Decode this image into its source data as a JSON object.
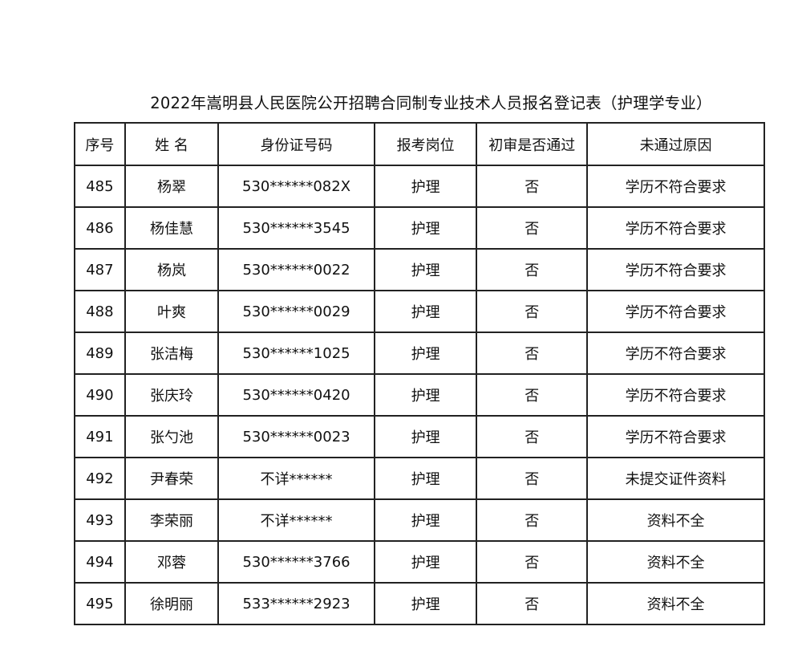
{
  "title": "2022年嵩明县人民医院公开招聘合同制专业技术人员报名登记表（护理学专业）",
  "headers": [
    "序号",
    "姓 名",
    "身份证号码",
    "报考岗位",
    "初审是否通过",
    "未通过原因"
  ],
  "rows": [
    [
      "485",
      "杨翠",
      "530******082X",
      "护理",
      "否",
      "学历不符合要求"
    ],
    [
      "486",
      "杨佳慧",
      "530******3545",
      "护理",
      "否",
      "学历不符合要求"
    ],
    [
      "487",
      "杨岚",
      "530******0022",
      "护理",
      "否",
      "学历不符合要求"
    ],
    [
      "488",
      "叶爽",
      "530******0029",
      "护理",
      "否",
      "学历不符合要求"
    ],
    [
      "489",
      "张洁梅",
      "530******1025",
      "护理",
      "否",
      "学历不符合要求"
    ],
    [
      "490",
      "张庆玲",
      "530******0420",
      "护理",
      "否",
      "学历不符合要求"
    ],
    [
      "491",
      "张勺池",
      "530******0023",
      "护理",
      "否",
      "学历不符合要求"
    ],
    [
      "492",
      "尹春荣",
      "不详******",
      "护理",
      "否",
      "未提交证件资料"
    ],
    [
      "493",
      "李荣丽",
      "不详******",
      "护理",
      "否",
      "资料不全"
    ],
    [
      "494",
      "邓蓉",
      "530******3766",
      "护理",
      "否",
      "资料不全"
    ],
    [
      "495",
      "徐明丽",
      "533******2923",
      "护理",
      "否",
      "资料不全"
    ]
  ]
}
